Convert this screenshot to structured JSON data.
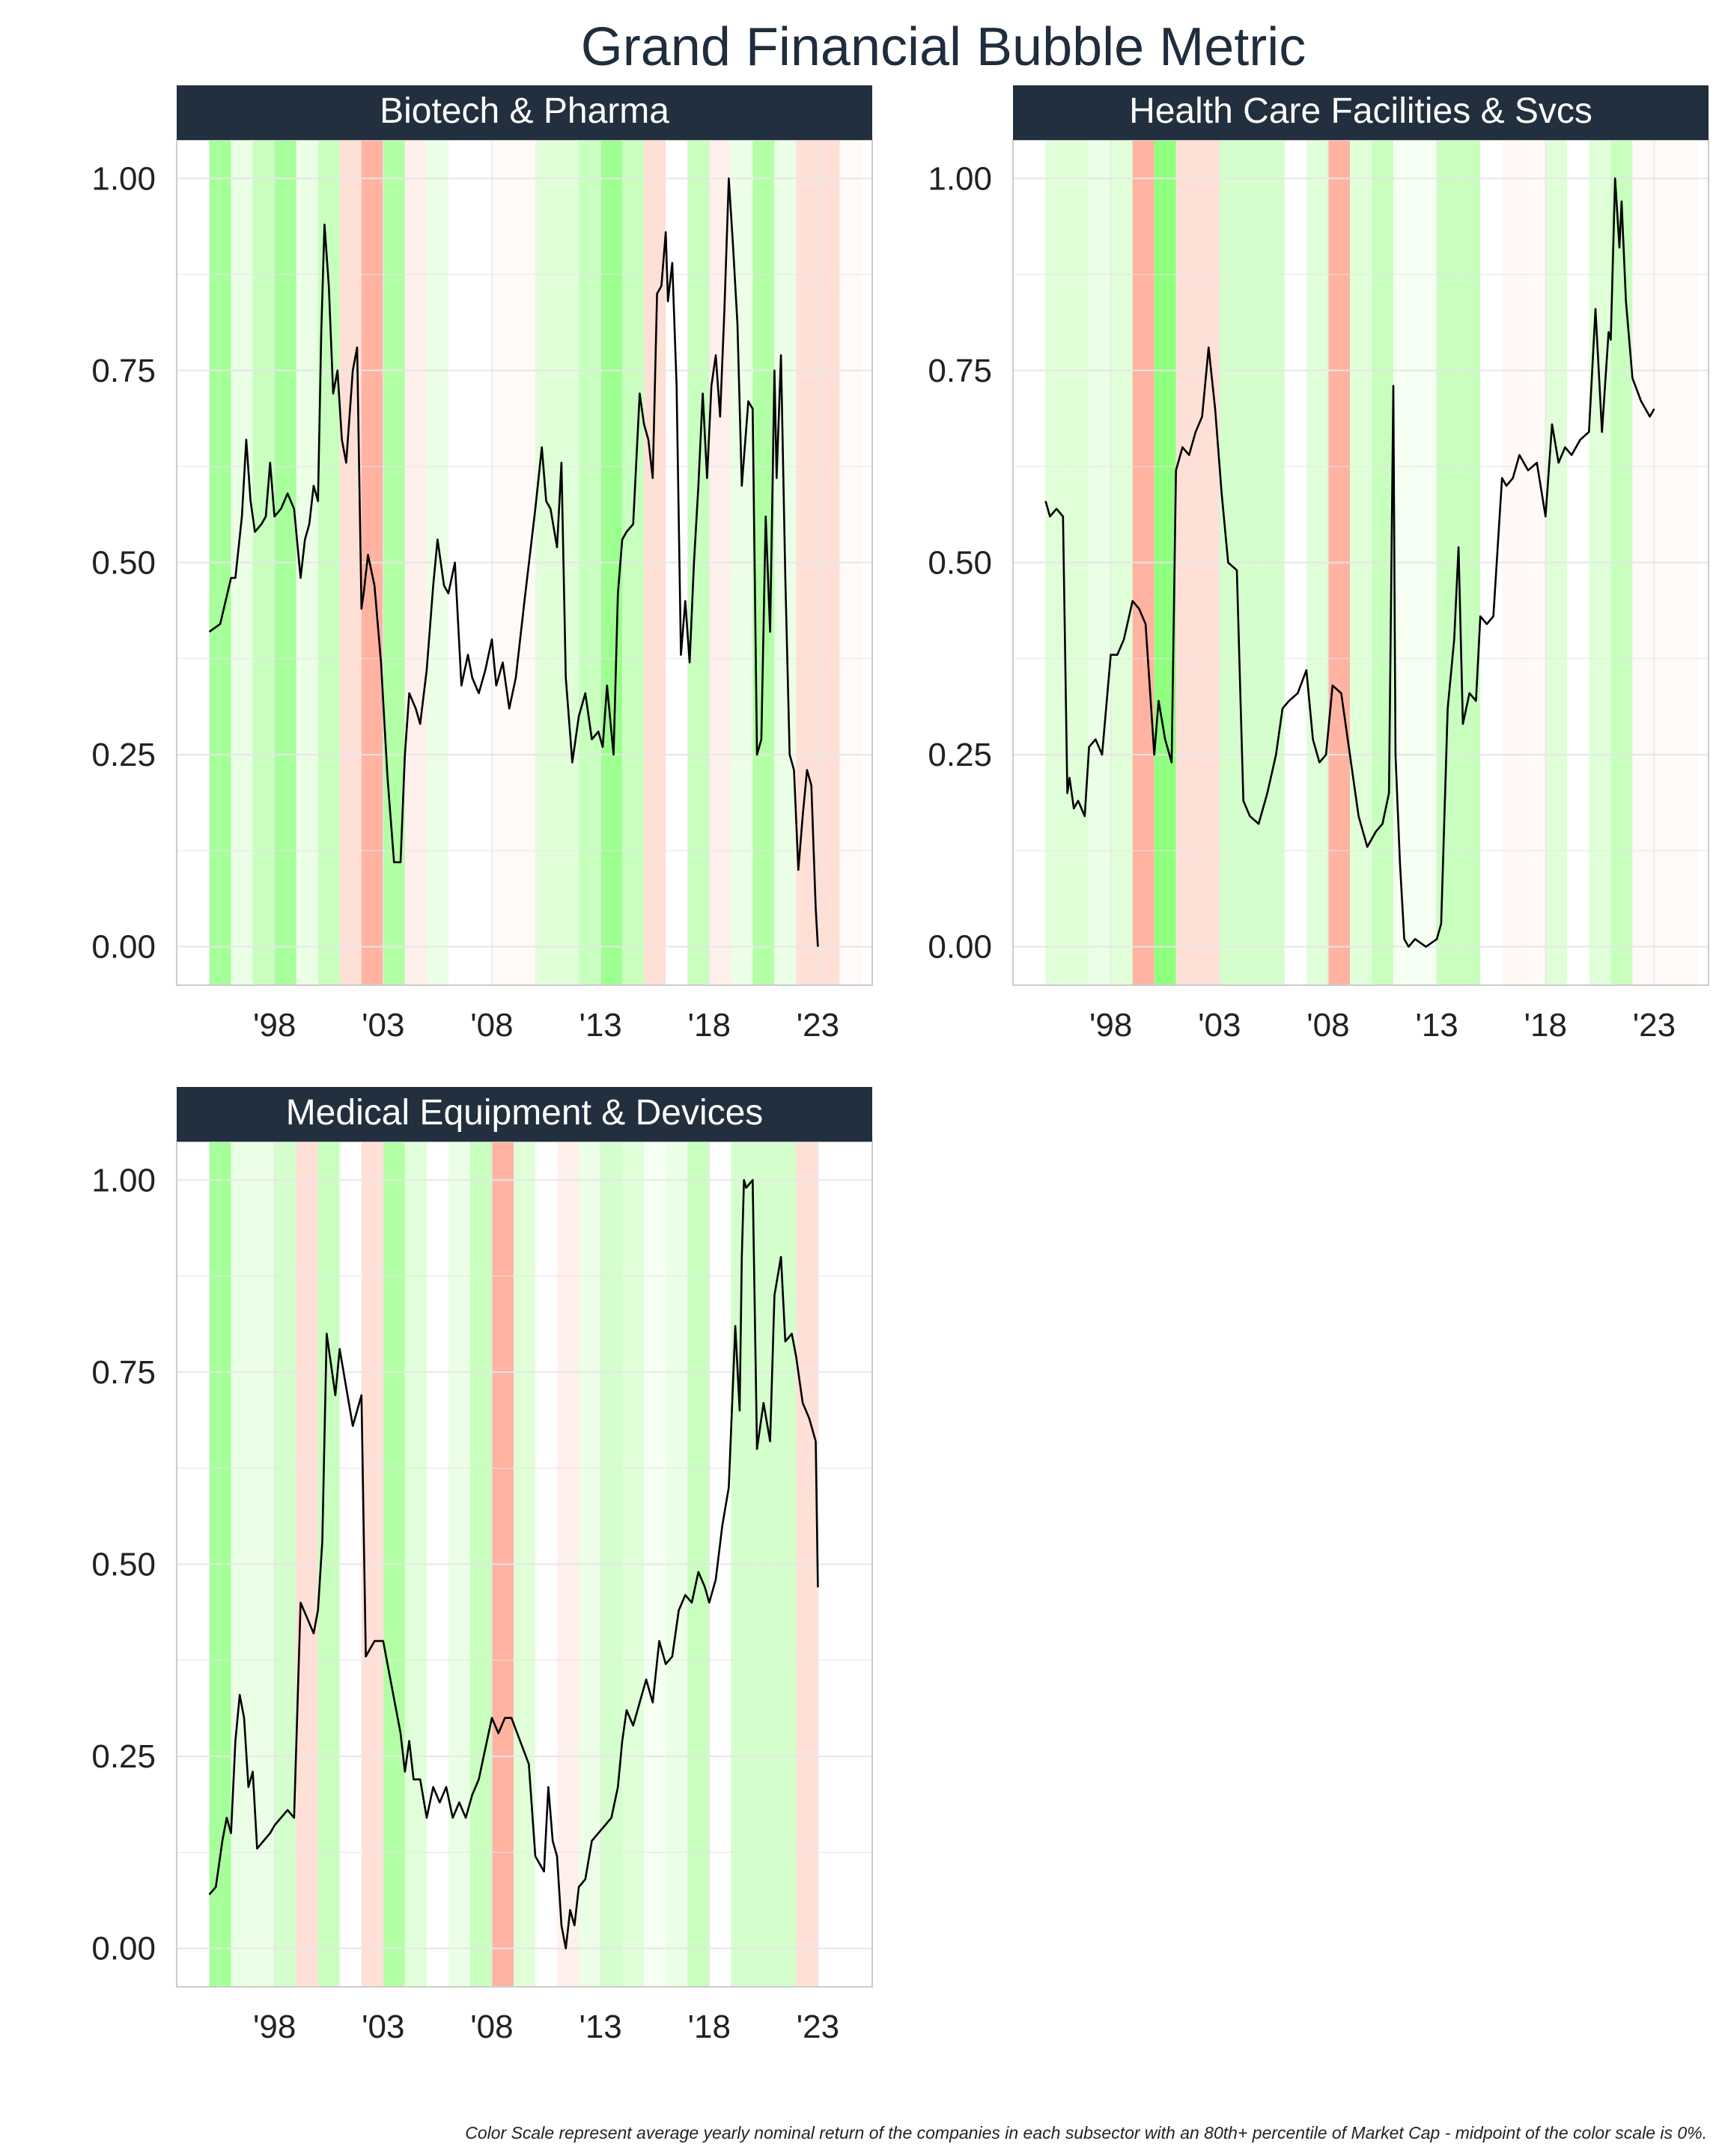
{
  "title": "Grand Financial Bubble Metric",
  "caption": "Color Scale represent average yearly nominal return of the companies in each subsector with an 80th+ percentile of Market Cap - midpoint of the color scale is 0%.",
  "colors": {
    "strip": "#222f3e",
    "strip_text": "#ffffff",
    "line": "#000000",
    "grid": "#e6e6e6"
  },
  "chart_data": [
    {
      "type": "line",
      "title": "Biotech & Pharma",
      "xlim": [
        1993.5,
        2025.5
      ],
      "ylim": [
        -0.05,
        1.05
      ],
      "x_ticks": [
        1998,
        2003,
        2008,
        2013,
        2018,
        2023
      ],
      "x_tick_labels": [
        "'98",
        "'03",
        "'08",
        "'13",
        "'18",
        "'23"
      ],
      "y_ticks": [
        0,
        0.25,
        0.5,
        0.75,
        1
      ],
      "y_tick_labels": [
        "0.00",
        "0.25",
        "0.50",
        "0.75",
        "1.00"
      ],
      "band_start": 1995,
      "band_colors": [
        "#a6ff9a",
        "#ebffe6",
        "#c8ffbf",
        "#a6ff9a",
        "#ebffe6",
        "#c8ffbf",
        "#ffe0d6",
        "#ffb3a0",
        "#b3ffa6",
        "#fff0eb",
        "#ebffe6",
        "#ffffff",
        "#ffffff",
        "#fffaf8",
        "#fffaf8",
        "#e0ffd9",
        "#e0ffd9",
        "#c8ffbf",
        "#9dff8f",
        "#c8ffbf",
        "#ffe0d6",
        "#ffffff",
        "#c8ffbf",
        "#fff0eb",
        "#ebffe6",
        "#b3ffa6",
        "#ebffe6",
        "#ffe0d6",
        "#ffe0d6",
        "#fffaf8",
        "#ffffff"
      ],
      "x": [
        1995,
        1995.5,
        1996,
        1996.2,
        1996.5,
        1996.7,
        1996.9,
        1997.1,
        1997.4,
        1997.6,
        1997.8,
        1998,
        1998.3,
        1998.6,
        1998.9,
        1999.2,
        1999.4,
        1999.6,
        1999.8,
        2000,
        2000.15,
        2000.3,
        2000.5,
        2000.7,
        2000.9,
        2001.1,
        2001.3,
        2001.6,
        2001.8,
        2002,
        2002.1,
        2002.3,
        2002.6,
        2002.9,
        2003.2,
        2003.5,
        2003.8,
        2004,
        2004.2,
        2004.5,
        2004.7,
        2005,
        2005.3,
        2005.5,
        2005.8,
        2006,
        2006.3,
        2006.6,
        2006.9,
        2007.1,
        2007.4,
        2007.7,
        2008,
        2008.2,
        2008.5,
        2008.8,
        2009.1,
        2009.5,
        2010,
        2010.3,
        2010.5,
        2010.7,
        2011,
        2011.2,
        2011.4,
        2011.7,
        2012,
        2012.3,
        2012.6,
        2012.9,
        2013.1,
        2013.3,
        2013.6,
        2013.8,
        2014,
        2014.2,
        2014.5,
        2014.8,
        2015,
        2015.2,
        2015.4,
        2015.6,
        2015.8,
        2016,
        2016.1,
        2016.3,
        2016.5,
        2016.7,
        2016.9,
        2017.1,
        2017.3,
        2017.5,
        2017.7,
        2017.9,
        2018.1,
        2018.3,
        2018.5,
        2018.7,
        2018.9,
        2019.1,
        2019.3,
        2019.5,
        2019.8,
        2020,
        2020.2,
        2020.4,
        2020.6,
        2020.8,
        2021,
        2021.1,
        2021.3,
        2021.5,
        2021.7,
        2021.9,
        2022.1,
        2022.3,
        2022.5,
        2022.7,
        2022.9,
        2023
      ],
      "y": [
        0.41,
        0.42,
        0.48,
        0.48,
        0.56,
        0.66,
        0.58,
        0.54,
        0.55,
        0.56,
        0.63,
        0.56,
        0.57,
        0.59,
        0.57,
        0.48,
        0.53,
        0.55,
        0.6,
        0.58,
        0.8,
        0.94,
        0.86,
        0.72,
        0.75,
        0.66,
        0.63,
        0.75,
        0.78,
        0.44,
        0.46,
        0.51,
        0.47,
        0.37,
        0.22,
        0.11,
        0.11,
        0.25,
        0.33,
        0.31,
        0.29,
        0.36,
        0.47,
        0.53,
        0.47,
        0.46,
        0.5,
        0.34,
        0.38,
        0.35,
        0.33,
        0.36,
        0.4,
        0.34,
        0.37,
        0.31,
        0.35,
        0.45,
        0.57,
        0.65,
        0.58,
        0.57,
        0.52,
        0.63,
        0.35,
        0.24,
        0.3,
        0.33,
        0.27,
        0.28,
        0.26,
        0.34,
        0.25,
        0.46,
        0.53,
        0.54,
        0.55,
        0.72,
        0.68,
        0.66,
        0.61,
        0.85,
        0.86,
        0.93,
        0.84,
        0.89,
        0.73,
        0.38,
        0.45,
        0.37,
        0.5,
        0.6,
        0.72,
        0.61,
        0.73,
        0.77,
        0.69,
        0.83,
        1.0,
        0.91,
        0.81,
        0.6,
        0.71,
        0.7,
        0.25,
        0.27,
        0.56,
        0.41,
        0.75,
        0.61,
        0.77,
        0.48,
        0.25,
        0.23,
        0.1,
        0.17,
        0.23,
        0.21,
        0.05,
        0.0
      ]
    },
    {
      "type": "line",
      "title": "Health Care Facilities & Svcs",
      "xlim": [
        1993.5,
        2025.5
      ],
      "ylim": [
        -0.05,
        1.05
      ],
      "x_ticks": [
        1998,
        2003,
        2008,
        2013,
        2018,
        2023
      ],
      "x_tick_labels": [
        "'98",
        "'03",
        "'08",
        "'13",
        "'18",
        "'23"
      ],
      "y_ticks": [
        0,
        0.25,
        0.5,
        0.75,
        1
      ],
      "y_tick_labels": [
        "0.00",
        "0.25",
        "0.50",
        "0.75",
        "1.00"
      ],
      "band_start": 1995,
      "band_colors": [
        "#e0ffd9",
        "#e0ffd9",
        "#ebffe6",
        "#e0ffd9",
        "#ffb3a0",
        "#8fff80",
        "#ffe0d6",
        "#ffe0d6",
        "#d4ffcc",
        "#d4ffcc",
        "#d4ffcc",
        "#ffffff",
        "#e0ffd9",
        "#ffb3a0",
        "#e0ffd9",
        "#c8ffbf",
        "#f5fff2",
        "#f5fff2",
        "#c8ffbf",
        "#c8ffbf",
        "#ffffff",
        "#fff8f5",
        "#fffaf8",
        "#e0ffd9",
        "#ffffff",
        "#e0ffd9",
        "#c8ffbf",
        "#fffaf8",
        "#fffaf8",
        "#fffaf8",
        "#ffffff"
      ],
      "x": [
        1995,
        1995.2,
        1995.5,
        1995.8,
        1996,
        1996.1,
        1996.3,
        1996.5,
        1996.8,
        1997,
        1997.3,
        1997.6,
        1998,
        1998.3,
        1998.6,
        1999,
        1999.3,
        1999.6,
        2000,
        2000.2,
        2000.5,
        2000.8,
        2001,
        2001.3,
        2001.6,
        2001.9,
        2002.2,
        2002.5,
        2002.8,
        2003.1,
        2003.4,
        2003.8,
        2004.1,
        2004.4,
        2004.8,
        2005.2,
        2005.6,
        2005.9,
        2006.2,
        2006.6,
        2007,
        2007.3,
        2007.6,
        2007.9,
        2008.2,
        2008.6,
        2009,
        2009.4,
        2009.8,
        2010.2,
        2010.5,
        2010.8,
        2011,
        2011.1,
        2011.3,
        2011.5,
        2011.7,
        2012,
        2012.5,
        2013,
        2013.2,
        2013.5,
        2013.8,
        2014,
        2014.2,
        2014.5,
        2014.8,
        2015,
        2015.3,
        2015.6,
        2016,
        2016.2,
        2016.5,
        2016.8,
        2017.2,
        2017.6,
        2018,
        2018.3,
        2018.6,
        2018.9,
        2019.2,
        2019.6,
        2020,
        2020.3,
        2020.6,
        2020.9,
        2021,
        2021.2,
        2021.4,
        2021.5,
        2021.7,
        2022,
        2022.4,
        2022.8,
        2023
      ],
      "y": [
        0.58,
        0.56,
        0.57,
        0.56,
        0.2,
        0.22,
        0.18,
        0.19,
        0.17,
        0.26,
        0.27,
        0.25,
        0.38,
        0.38,
        0.4,
        0.45,
        0.44,
        0.42,
        0.25,
        0.32,
        0.27,
        0.24,
        0.62,
        0.65,
        0.64,
        0.67,
        0.69,
        0.78,
        0.7,
        0.59,
        0.5,
        0.49,
        0.19,
        0.17,
        0.16,
        0.2,
        0.25,
        0.31,
        0.32,
        0.33,
        0.36,
        0.27,
        0.24,
        0.25,
        0.34,
        0.33,
        0.25,
        0.17,
        0.13,
        0.15,
        0.16,
        0.2,
        0.73,
        0.25,
        0.11,
        0.01,
        0.0,
        0.01,
        0.0,
        0.01,
        0.03,
        0.31,
        0.4,
        0.52,
        0.29,
        0.33,
        0.32,
        0.43,
        0.42,
        0.43,
        0.61,
        0.6,
        0.61,
        0.64,
        0.62,
        0.63,
        0.56,
        0.68,
        0.63,
        0.65,
        0.64,
        0.66,
        0.67,
        0.83,
        0.67,
        0.8,
        0.79,
        1.0,
        0.91,
        0.97,
        0.84,
        0.74,
        0.71,
        0.69,
        0.7
      ]
    },
    {
      "type": "line",
      "title": "Medical Equipment & Devices",
      "xlim": [
        1993.5,
        2025.5
      ],
      "ylim": [
        -0.05,
        1.05
      ],
      "x_ticks": [
        1998,
        2003,
        2008,
        2013,
        2018,
        2023
      ],
      "x_tick_labels": [
        "'98",
        "'03",
        "'08",
        "'13",
        "'18",
        "'23"
      ],
      "y_ticks": [
        0,
        0.25,
        0.5,
        0.75,
        1
      ],
      "y_tick_labels": [
        "0.00",
        "0.25",
        "0.50",
        "0.75",
        "1.00"
      ],
      "band_start": 1995,
      "band_colors": [
        "#a6ff9a",
        "#ebffe6",
        "#ebffe6",
        "#d4ffcc",
        "#ffe0d6",
        "#c8ffbf",
        "#ffffff",
        "#ffe0d6",
        "#b3ffa6",
        "#e0ffd9",
        "#ffffff",
        "#ebffe6",
        "#c8ffbf",
        "#ffb3a0",
        "#e0ffd9",
        "#ffffff",
        "#fff0eb",
        "#ebffe6",
        "#d4ffcc",
        "#e0ffd9",
        "#f5fff2",
        "#ebffe6",
        "#c8ffbf",
        "#ffffff",
        "#d4ffcc",
        "#d4ffcc",
        "#d4ffcc",
        "#ffe0d6",
        "#ffffff",
        "#ffffff",
        "#ffffff"
      ],
      "x": [
        1995,
        1995.3,
        1995.6,
        1995.8,
        1996,
        1996.2,
        1996.4,
        1996.6,
        1996.8,
        1997,
        1997.2,
        1997.5,
        1997.8,
        1998,
        1998.3,
        1998.6,
        1998.9,
        1999.2,
        1999.5,
        1999.8,
        2000,
        2000.2,
        2000.4,
        2000.6,
        2000.8,
        2001,
        2001.3,
        2001.6,
        2001.9,
        2002,
        2002.2,
        2002.6,
        2003,
        2003.4,
        2003.8,
        2004,
        2004.2,
        2004.4,
        2004.7,
        2005,
        2005.3,
        2005.6,
        2005.9,
        2006.2,
        2006.5,
        2006.8,
        2007.1,
        2007.4,
        2007.7,
        2008,
        2008.3,
        2008.6,
        2008.9,
        2009.3,
        2009.7,
        2010,
        2010.2,
        2010.4,
        2010.6,
        2010.8,
        2011,
        2011.2,
        2011.4,
        2011.6,
        2011.8,
        2012,
        2012.3,
        2012.6,
        2012.9,
        2013.2,
        2013.5,
        2013.8,
        2014,
        2014.2,
        2014.5,
        2014.8,
        2015.1,
        2015.4,
        2015.7,
        2016,
        2016.3,
        2016.6,
        2016.9,
        2017.2,
        2017.5,
        2017.8,
        2018,
        2018.3,
        2018.6,
        2018.9,
        2019.2,
        2019.4,
        2019.5,
        2019.6,
        2019.7,
        2020,
        2020.2,
        2020.5,
        2020.8,
        2021,
        2021.3,
        2021.5,
        2021.8,
        2022,
        2022.3,
        2022.6,
        2022.9,
        2023
      ],
      "y": [
        0.07,
        0.08,
        0.14,
        0.17,
        0.15,
        0.27,
        0.33,
        0.3,
        0.21,
        0.23,
        0.13,
        0.14,
        0.15,
        0.16,
        0.17,
        0.18,
        0.17,
        0.45,
        0.43,
        0.41,
        0.44,
        0.53,
        0.8,
        0.76,
        0.72,
        0.78,
        0.73,
        0.68,
        0.71,
        0.72,
        0.38,
        0.4,
        0.4,
        0.34,
        0.28,
        0.23,
        0.27,
        0.22,
        0.22,
        0.17,
        0.21,
        0.19,
        0.21,
        0.17,
        0.19,
        0.17,
        0.2,
        0.22,
        0.26,
        0.3,
        0.28,
        0.3,
        0.3,
        0.27,
        0.24,
        0.12,
        0.11,
        0.1,
        0.21,
        0.14,
        0.12,
        0.03,
        0.0,
        0.05,
        0.03,
        0.08,
        0.09,
        0.14,
        0.15,
        0.16,
        0.17,
        0.21,
        0.27,
        0.31,
        0.29,
        0.32,
        0.35,
        0.32,
        0.4,
        0.37,
        0.38,
        0.44,
        0.46,
        0.45,
        0.49,
        0.47,
        0.45,
        0.48,
        0.55,
        0.6,
        0.81,
        0.7,
        0.9,
        1.0,
        0.99,
        1.0,
        0.65,
        0.71,
        0.66,
        0.85,
        0.9,
        0.79,
        0.8,
        0.77,
        0.71,
        0.69,
        0.66,
        0.47
      ]
    }
  ]
}
